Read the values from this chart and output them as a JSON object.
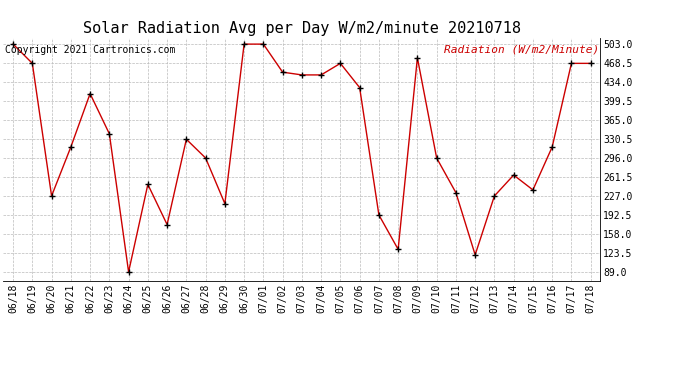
{
  "title": "Solar Radiation Avg per Day W/m2/minute 20210718",
  "copyright": "Copyright 2021 Cartronics.com",
  "legend_label": "Radiation (W/m2/Minute)",
  "dates": [
    "06/18",
    "06/19",
    "06/20",
    "06/21",
    "06/22",
    "06/23",
    "06/24",
    "06/25",
    "06/26",
    "06/27",
    "06/28",
    "06/29",
    "06/30",
    "07/01",
    "07/02",
    "07/03",
    "07/04",
    "07/05",
    "07/06",
    "07/07",
    "07/08",
    "07/09",
    "07/10",
    "07/11",
    "07/12",
    "07/13",
    "07/14",
    "07/15",
    "07/16",
    "07/17",
    "07/18"
  ],
  "values": [
    503.0,
    468.0,
    227.0,
    316.0,
    413.0,
    340.0,
    89.0,
    248.0,
    175.0,
    330.0,
    296.0,
    213.0,
    503.0,
    503.0,
    452.0,
    447.0,
    447.0,
    468.0,
    424.0,
    192.5,
    130.0,
    478.0,
    296.0,
    233.0,
    120.0,
    227.0,
    265.0,
    238.0,
    316.0,
    468.0,
    468.0
  ],
  "line_color": "#cc0000",
  "marker_color": "#000000",
  "background_color": "#ffffff",
  "grid_color": "#bbbbbb",
  "title_color": "#000000",
  "copyright_color": "#000000",
  "legend_color": "#cc0000",
  "ylim_min": 72.0,
  "ylim_max": 515.0,
  "yticks": [
    89.0,
    123.5,
    158.0,
    192.5,
    227.0,
    261.5,
    296.0,
    330.5,
    365.0,
    399.5,
    434.0,
    468.5,
    503.0
  ],
  "title_fontsize": 11,
  "copyright_fontsize": 7,
  "legend_fontsize": 8,
  "tick_fontsize": 7
}
